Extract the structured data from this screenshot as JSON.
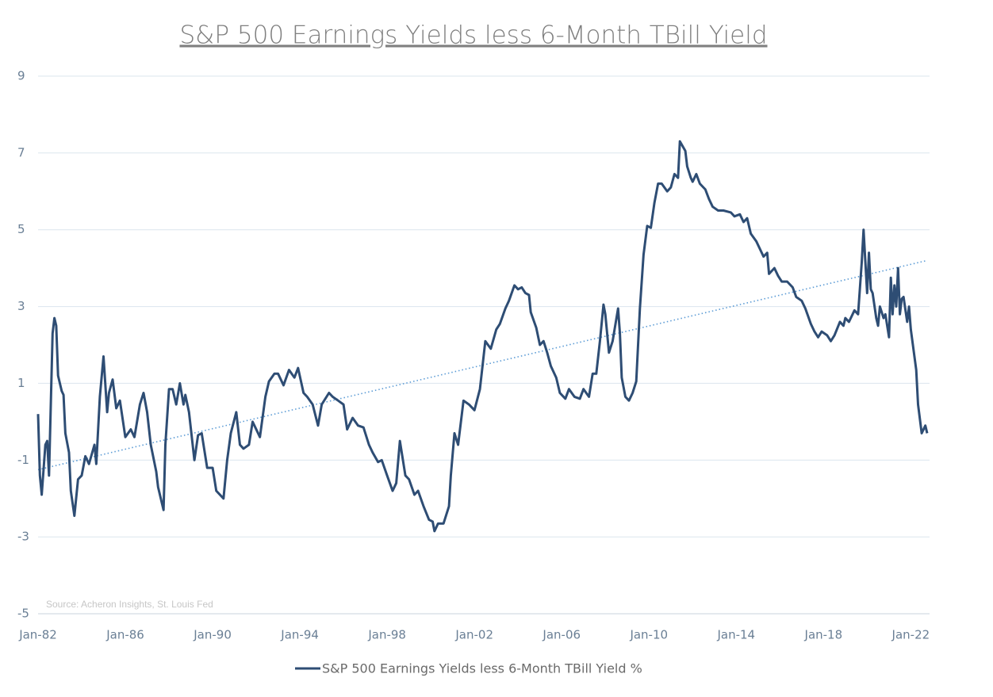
{
  "chart_data": {
    "type": "line",
    "title": "S&P 500 Earnings Yields less 6-Month TBill Yield",
    "annotation": "Source: Acheron Insights, St. Louis Fed",
    "x": [
      "Jan-82",
      "Feb-82",
      "Mar-82",
      "May-82",
      "Jun-82",
      "Jul-82",
      "Sep-82",
      "Oct-82",
      "Nov-82",
      "Dec-82",
      "Feb-83",
      "Mar-83",
      "Apr-83",
      "Jun-83",
      "Jul-83",
      "Sep-83",
      "Nov-83",
      "Jan-84",
      "Mar-84",
      "May-84",
      "Aug-84",
      "Sep-84",
      "Nov-84",
      "Jan-85",
      "Mar-85",
      "Apr-85",
      "Jun-85",
      "Aug-85",
      "Oct-85",
      "Jan-86",
      "Apr-86",
      "Jun-86",
      "Sep-86",
      "Nov-86",
      "Jan-87",
      "Mar-87",
      "Jun-87",
      "Jul-87",
      "Oct-87",
      "Nov-87",
      "Jan-88",
      "Mar-88",
      "May-88",
      "Jul-88",
      "Sep-88",
      "Oct-88",
      "Dec-88",
      "Mar-89",
      "May-89",
      "Jul-89",
      "Oct-89",
      "Jan-90",
      "Mar-90",
      "Jul-90",
      "Sep-90",
      "Nov-90",
      "Feb-91",
      "Apr-91",
      "Jun-91",
      "Sep-91",
      "Nov-91",
      "Mar-92",
      "Jun-92",
      "Aug-92",
      "Nov-92",
      "Jan-93",
      "Apr-93",
      "Jul-93",
      "Oct-93",
      "Dec-93",
      "Mar-94",
      "May-94",
      "Aug-94",
      "Nov-94",
      "Jan-95",
      "May-95",
      "Jul-95",
      "Oct-95",
      "Jan-96",
      "Mar-96",
      "Jun-96",
      "Sep-96",
      "Dec-96",
      "Mar-97",
      "May-97",
      "Aug-97",
      "Oct-97",
      "Jan-98",
      "Apr-98",
      "Jun-98",
      "Aug-98",
      "Nov-98",
      "Jan-99",
      "Apr-99",
      "Jun-99",
      "Sep-99",
      "Dec-99",
      "Feb-00",
      "Mar-00",
      "May-00",
      "Aug-00",
      "Nov-00",
      "Dec-00",
      "Feb-01",
      "Apr-01",
      "Jul-01",
      "Oct-01",
      "Jan-02",
      "Apr-02",
      "Jul-02",
      "Oct-02",
      "Jan-03",
      "Mar-03",
      "Jun-03",
      "Aug-03",
      "Nov-03",
      "Jan-04",
      "Mar-04",
      "May-04",
      "Jul-04",
      "Aug-04",
      "Nov-04",
      "Jan-05",
      "Mar-05",
      "May-05",
      "Jul-05",
      "Oct-05",
      "Dec-05",
      "Mar-06",
      "May-06",
      "Aug-06",
      "Nov-06",
      "Jan-07",
      "Apr-07",
      "Jun-07",
      "Aug-07",
      "Oct-07",
      "Dec-07",
      "Jan-08",
      "Mar-08",
      "May-08",
      "Aug-08",
      "Sep-08",
      "Oct-08",
      "Dec-08",
      "Feb-09",
      "Apr-09",
      "Jun-09",
      "Aug-09",
      "Oct-09",
      "Dec-09",
      "Feb-10",
      "Apr-10",
      "Jun-10",
      "Aug-10",
      "Nov-10",
      "Jan-11",
      "Mar-11",
      "May-11",
      "Jun-11",
      "Sep-11",
      "Oct-11",
      "Dec-11",
      "Jan-12",
      "Mar-12",
      "May-12",
      "Aug-12",
      "Oct-12",
      "Dec-12",
      "Mar-13",
      "Jun-13",
      "Oct-13",
      "Dec-13",
      "Mar-14",
      "May-14",
      "Jul-14",
      "Sep-14",
      "Dec-14",
      "Feb-15",
      "Apr-15",
      "Jun-15",
      "Jul-15",
      "Oct-15",
      "Dec-15",
      "Feb-16",
      "May-16",
      "Aug-16",
      "Oct-16",
      "Jan-17",
      "Mar-17",
      "Jun-17",
      "Aug-17",
      "Oct-17",
      "Dec-17",
      "Mar-18",
      "May-18",
      "Jul-18",
      "Oct-18",
      "Dec-18",
      "Jan-19",
      "Mar-19",
      "May-19",
      "Jun-19",
      "Aug-19",
      "Oct-19",
      "Nov-19",
      "Dec-19",
      "Jan-20",
      "Feb-20",
      "Mar-20",
      "Apr-20",
      "Jun-20",
      "Jul-20",
      "Aug-20",
      "Oct-20",
      "Nov-20",
      "Jan-21",
      "Feb-21",
      "Mar-21",
      "Apr-21",
      "May-21",
      "Jun-21",
      "Jul-21",
      "Aug-21",
      "Sep-21",
      "Nov-21",
      "Dec-21",
      "Jan-22",
      "Apr-22",
      "May-22",
      "Jul-22",
      "Sep-22",
      "Oct-22"
    ],
    "series": [
      {
        "name": "S&P 500 Earnings Yields less 6-Month TBill Yield %",
        "color": "#2e4d74",
        "values": [
          0.2,
          -1.4,
          -1.9,
          -0.6,
          -0.5,
          -1.4,
          2.3,
          2.7,
          2.5,
          1.2,
          0.8,
          0.7,
          -0.3,
          -0.8,
          -1.8,
          -2.45,
          -1.5,
          -1.4,
          -0.9,
          -1.1,
          -0.6,
          -1.1,
          0.65,
          1.7,
          0.25,
          0.75,
          1.1,
          0.35,
          0.55,
          -0.4,
          -0.2,
          -0.4,
          0.45,
          0.75,
          0.25,
          -0.6,
          -1.3,
          -1.7,
          -2.3,
          -0.6,
          0.85,
          0.85,
          0.45,
          1.0,
          0.45,
          0.7,
          0.25,
          -1.0,
          -0.35,
          -0.3,
          -1.2,
          -1.2,
          -1.8,
          -2.0,
          -1.0,
          -0.3,
          0.25,
          -0.6,
          -0.7,
          -0.6,
          0.0,
          -0.4,
          0.65,
          1.05,
          1.25,
          1.25,
          0.95,
          1.35,
          1.15,
          1.4,
          0.75,
          0.65,
          0.45,
          -0.1,
          0.45,
          0.75,
          0.65,
          0.55,
          0.45,
          -0.2,
          0.1,
          -0.1,
          -0.15,
          -0.6,
          -0.8,
          -1.05,
          -1.0,
          -1.4,
          -1.8,
          -1.6,
          -0.5,
          -1.4,
          -1.5,
          -1.9,
          -1.8,
          -2.2,
          -2.55,
          -2.6,
          -2.85,
          -2.65,
          -2.65,
          -2.2,
          -1.4,
          -0.3,
          -0.6,
          0.55,
          0.45,
          0.3,
          0.85,
          2.1,
          1.9,
          2.4,
          2.55,
          2.95,
          3.15,
          3.55,
          3.45,
          3.5,
          3.35,
          3.3,
          2.85,
          2.45,
          2.0,
          2.1,
          1.8,
          1.45,
          1.15,
          0.75,
          0.6,
          0.85,
          0.65,
          0.6,
          0.85,
          0.65,
          1.25,
          1.25,
          2.1,
          3.05,
          2.8,
          1.8,
          2.1,
          2.95,
          2.3,
          1.15,
          0.65,
          0.55,
          0.75,
          1.05,
          2.95,
          4.35,
          5.1,
          5.05,
          5.7,
          6.2,
          6.2,
          6.0,
          6.1,
          6.45,
          6.35,
          7.3,
          7.05,
          6.65,
          6.35,
          6.25,
          6.45,
          6.2,
          6.05,
          5.8,
          5.6,
          5.5,
          5.5,
          5.45,
          5.35,
          5.4,
          5.2,
          5.3,
          4.9,
          4.7,
          4.5,
          4.3,
          4.4,
          3.85,
          4.0,
          3.8,
          3.65,
          3.65,
          3.5,
          3.25,
          3.15,
          2.95,
          2.55,
          2.35,
          2.2,
          2.35,
          2.25,
          2.1,
          2.25,
          2.6,
          2.5,
          2.7,
          2.6,
          2.8,
          2.9,
          2.8,
          4.15,
          5.0,
          4.15,
          3.35,
          4.4,
          3.45,
          3.35,
          2.7,
          2.5,
          3.0,
          2.7,
          2.8,
          2.2,
          3.75,
          2.8,
          3.55,
          3.0,
          4.0,
          2.8,
          3.2,
          3.25,
          2.6,
          3.0,
          2.4,
          1.35,
          0.45,
          -0.3,
          -0.1,
          -0.3
        ]
      }
    ],
    "trendline": {
      "x": [
        "Jan-82",
        "Oct-22"
      ],
      "values": [
        -1.25,
        4.2
      ],
      "color": "#5b9bd5"
    },
    "xlim": [
      "Jan-82",
      "Oct-22"
    ],
    "xticks": [
      "Jan-82",
      "Jan-86",
      "Jan-90",
      "Jan-94",
      "Jan-98",
      "Jan-02",
      "Jan-06",
      "Jan-10",
      "Jan-14",
      "Jan-18",
      "Jan-22"
    ],
    "ylim": [
      -5,
      9
    ],
    "yticks": [
      9,
      7,
      5,
      3,
      1,
      -1,
      -3,
      -5
    ],
    "grid": true,
    "legend": "bottom"
  }
}
